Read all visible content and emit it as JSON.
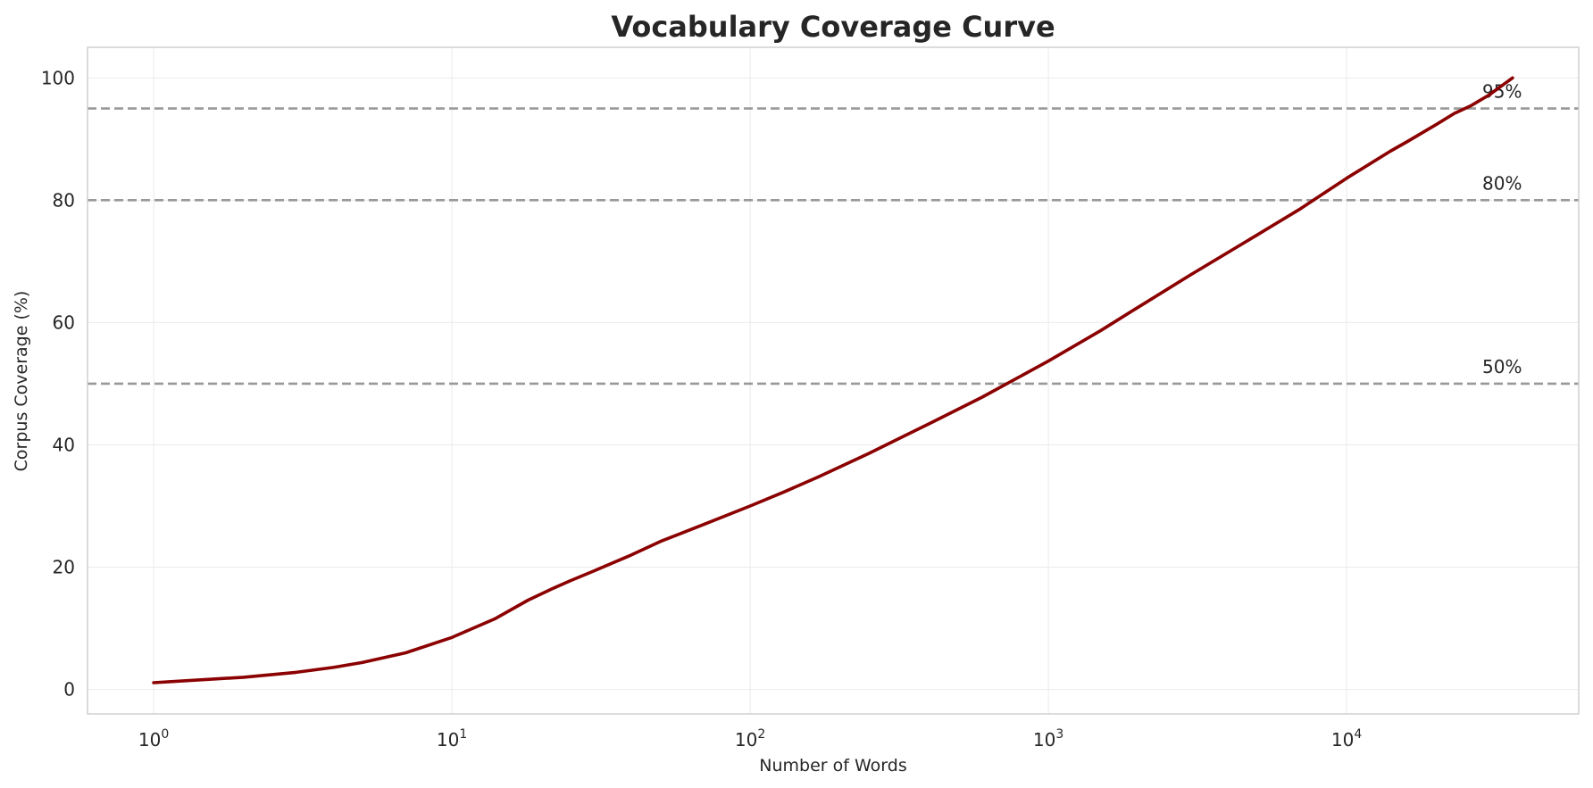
{
  "chart_data": {
    "type": "line",
    "title": "Vocabulary Coverage Curve",
    "xlabel": "Number of Words",
    "ylabel": "Corpus Coverage (%)",
    "xscale": "log",
    "xlim": [
      0.6,
      60000
    ],
    "ylim": [
      -4,
      105
    ],
    "grid": true,
    "legend": "none",
    "x_ticks": [
      {
        "base": "10",
        "exp": "0",
        "value": 1
      },
      {
        "base": "10",
        "exp": "1",
        "value": 10
      },
      {
        "base": "10",
        "exp": "2",
        "value": 100
      },
      {
        "base": "10",
        "exp": "3",
        "value": 1000
      },
      {
        "base": "10",
        "exp": "4",
        "value": 10000
      }
    ],
    "y_ticks": [
      {
        "label": "0",
        "value": 0
      },
      {
        "label": "20",
        "value": 20
      },
      {
        "label": "40",
        "value": 40
      },
      {
        "label": "60",
        "value": 60
      },
      {
        "label": "80",
        "value": 80
      },
      {
        "label": "100",
        "value": 100
      }
    ],
    "reference_lines": [
      {
        "label": "50%",
        "y": 50
      },
      {
        "label": "80%",
        "y": 80
      },
      {
        "label": "95%",
        "y": 95
      }
    ],
    "series": [
      {
        "color": "#8b0000",
        "x": [
          1,
          2,
          3,
          4,
          5,
          7,
          10,
          14,
          18,
          22,
          25,
          30,
          40,
          50,
          70,
          100,
          130,
          170,
          250,
          400,
          600,
          1000,
          1500,
          2000,
          3000,
          5000,
          7000,
          10000,
          14000,
          16000,
          20000,
          23000,
          26000,
          30000,
          36000
        ],
        "y": [
          1.1,
          2,
          2.8,
          3.6,
          4.4,
          6,
          8.5,
          11.6,
          14.6,
          16.6,
          17.8,
          19.4,
          22,
          24.2,
          27,
          30,
          32.3,
          34.8,
          38.6,
          43.5,
          47.8,
          53.7,
          58.7,
          62.5,
          67.8,
          74.3,
          78.6,
          83.6,
          88,
          89.6,
          92.4,
          94.2,
          95.4,
          97.2,
          100
        ]
      }
    ]
  }
}
